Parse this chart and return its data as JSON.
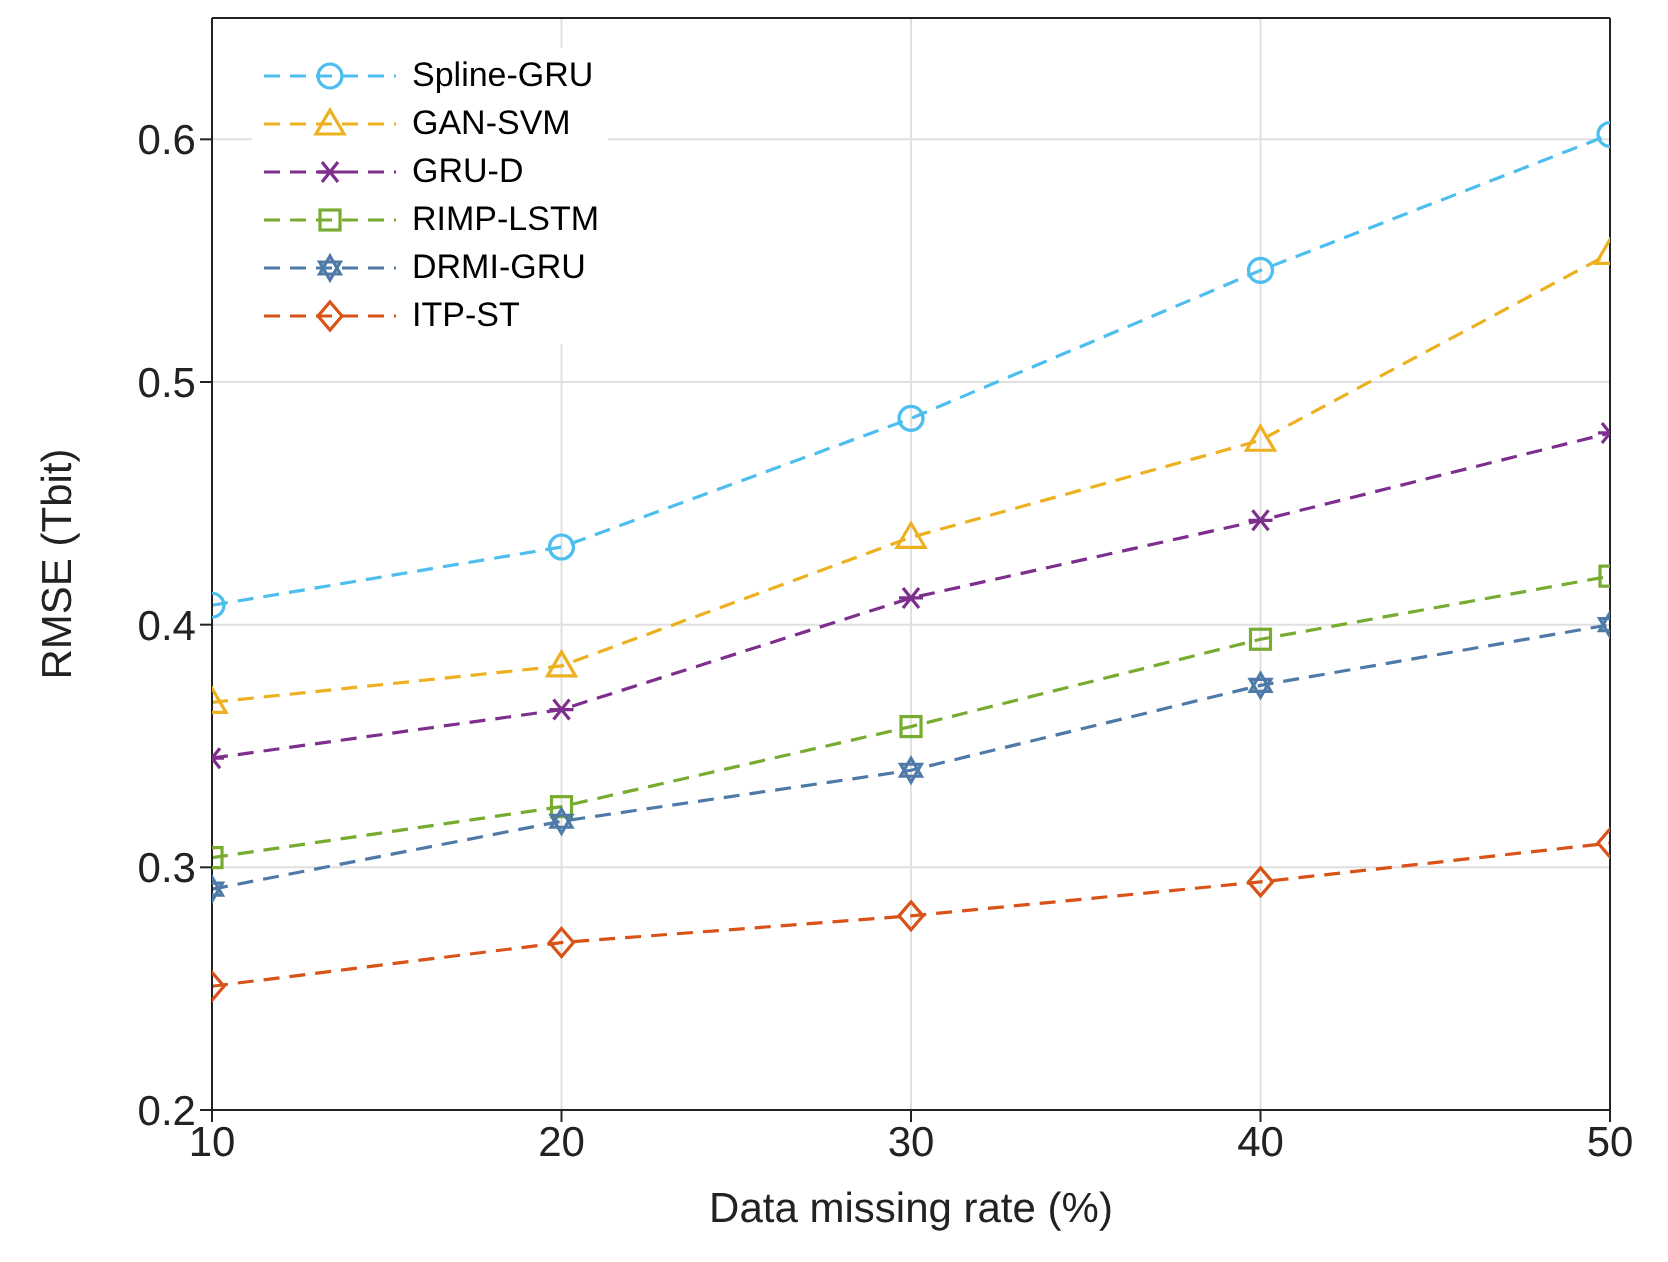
{
  "chart_data": {
    "type": "line",
    "xlabel": "Data missing rate (%)",
    "ylabel": "RMSE (Tbit)",
    "x": [
      10,
      20,
      30,
      40,
      50
    ],
    "series": [
      {
        "name": "Spline-GRU",
        "color": "#4dbeee",
        "marker": "circle",
        "line_style": "dashed",
        "values": [
          0.408,
          0.432,
          0.485,
          0.546,
          0.602
        ]
      },
      {
        "name": "GAN-SVM",
        "color": "#edb120",
        "marker": "triangle",
        "line_style": "dashed",
        "values": [
          0.368,
          0.383,
          0.436,
          0.476,
          0.553
        ]
      },
      {
        "name": "GRU-D",
        "color": "#7e2f8e",
        "marker": "cross",
        "line_style": "dashed",
        "values": [
          0.345,
          0.365,
          0.411,
          0.443,
          0.479
        ]
      },
      {
        "name": "RIMP-LSTM",
        "color": "#77ac30",
        "marker": "square",
        "line_style": "dashed",
        "values": [
          0.304,
          0.325,
          0.358,
          0.394,
          0.42
        ]
      },
      {
        "name": "DRMI-GRU",
        "color": "#4f7aa8",
        "marker": "star",
        "line_style": "dashed",
        "values": [
          0.291,
          0.319,
          0.34,
          0.375,
          0.4
        ]
      },
      {
        "name": "ITP-ST",
        "color": "#d95319",
        "marker": "diamond",
        "line_style": "dashed",
        "values": [
          0.251,
          0.269,
          0.28,
          0.294,
          0.31
        ]
      }
    ],
    "xlim": [
      10,
      50
    ],
    "xticks": [
      10,
      20,
      30,
      40,
      50
    ],
    "ylim": [
      0.2,
      0.65
    ],
    "yticks": [
      0.2,
      0.3,
      0.4,
      0.5,
      0.6
    ],
    "grid": true,
    "legend": "top left"
  }
}
